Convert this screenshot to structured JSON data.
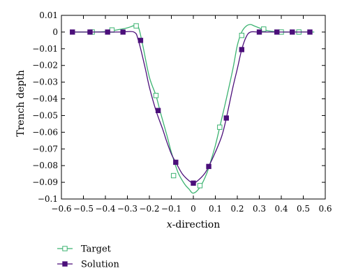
{
  "chart_data": {
    "type": "line",
    "title": "",
    "xlabel_italic": "x",
    "xlabel_rest": "-direction",
    "ylabel": "Trench depth",
    "xlim": [
      -0.6,
      0.6
    ],
    "ylim": [
      -0.1,
      0.01
    ],
    "x_ticks": [
      "−0.6",
      "−0.5",
      "−0.4",
      "−0.3",
      "−0.2",
      "−0.1",
      "0",
      "0.1",
      "0.2",
      "0.3",
      "0.4",
      "0.5",
      "0.6"
    ],
    "y_ticks": [
      "0.01",
      "0",
      "−0.01",
      "−0.02",
      "−0.03",
      "−0.04",
      "−0.05",
      "−0.06",
      "−0.07",
      "−0.08",
      "−0.09",
      "−0.1"
    ],
    "grid": false,
    "legend_position": "bottom-left",
    "series": [
      {
        "name": "Target",
        "color": "#3cb371",
        "marker": "open-square",
        "curve_x": [
          -0.55,
          -0.45,
          -0.4,
          -0.35,
          -0.3,
          -0.27,
          -0.25,
          -0.23,
          -0.2,
          -0.17,
          -0.15,
          -0.12,
          -0.1,
          -0.07,
          -0.04,
          -0.02,
          0,
          0.03,
          0.06,
          0.08,
          0.1,
          0.12,
          0.15,
          0.18,
          0.2,
          0.22,
          0.24,
          0.26,
          0.28,
          0.32,
          0.35,
          0.4,
          0.45,
          0.5,
          0.55
        ],
        "curve_y": [
          0,
          0,
          0.0003,
          0.0012,
          0.0025,
          0.0038,
          0.003,
          -0.008,
          -0.027,
          -0.038,
          -0.048,
          -0.062,
          -0.072,
          -0.084,
          -0.091,
          -0.094,
          -0.0965,
          -0.093,
          -0.085,
          -0.077,
          -0.068,
          -0.057,
          -0.04,
          -0.022,
          -0.008,
          0.0,
          0.0035,
          0.0045,
          0.0035,
          0.0015,
          0.0006,
          0.0,
          0,
          0,
          0
        ],
        "marker_x": [
          -0.46,
          -0.37,
          -0.26,
          -0.17,
          -0.09,
          0.03,
          0.12,
          0.22,
          0.32,
          0.4,
          0.48
        ],
        "marker_y": [
          0,
          0.0012,
          0.0037,
          -0.038,
          -0.086,
          -0.092,
          -0.057,
          -0.002,
          0.0018,
          0.0,
          0
        ]
      },
      {
        "name": "Solution",
        "color": "#4b0f7a",
        "marker": "filled-square",
        "curve_x": [
          -0.55,
          -0.47,
          -0.4,
          -0.33,
          -0.27,
          -0.25,
          -0.22,
          -0.2,
          -0.17,
          -0.14,
          -0.12,
          -0.1,
          -0.08,
          -0.05,
          -0.02,
          0,
          0.02,
          0.05,
          0.07,
          0.1,
          0.13,
          0.15,
          0.18,
          0.2,
          0.22,
          0.24,
          0.26,
          0.3,
          0.38,
          0.45,
          0.53
        ],
        "curve_y": [
          0,
          0,
          0,
          0,
          0,
          -0.005,
          -0.021,
          -0.033,
          -0.047,
          -0.058,
          -0.066,
          -0.073,
          -0.078,
          -0.085,
          -0.089,
          -0.0905,
          -0.089,
          -0.085,
          -0.0805,
          -0.072,
          -0.062,
          -0.0515,
          -0.033,
          -0.022,
          -0.0105,
          -0.003,
          0,
          0,
          0,
          0,
          0
        ],
        "marker_x": [
          -0.55,
          -0.47,
          -0.39,
          -0.32,
          -0.24,
          -0.16,
          -0.08,
          0,
          0.07,
          0.15,
          0.22,
          0.3,
          0.38,
          0.45,
          0.53
        ],
        "marker_y": [
          0,
          0,
          0,
          0,
          -0.005,
          -0.047,
          -0.078,
          -0.0905,
          -0.0805,
          -0.0515,
          -0.0105,
          0,
          0,
          0,
          0
        ]
      }
    ]
  }
}
